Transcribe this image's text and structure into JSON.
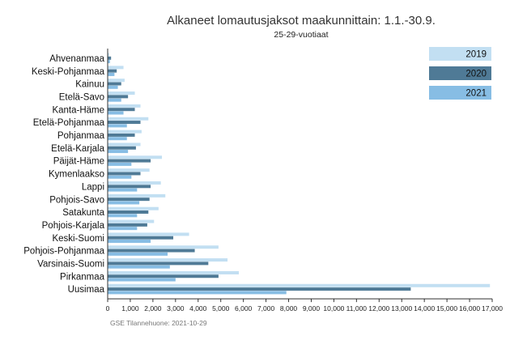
{
  "chart_data": {
    "type": "bar",
    "orientation": "horizontal",
    "title": "Alkaneet lomautusjaksot maakunnittain: 1.1.-30.9.",
    "subtitle": "25-29-vuotiaat",
    "source": "GSE Tilannehuone: 2021-10-29",
    "categories": [
      "Ahvenanmaa",
      "Keski-Pohjanmaa",
      "Kainuu",
      "Etelä-Savo",
      "Kanta-Häme",
      "Etelä-Pohjanmaa",
      "Pohjanmaa",
      "Etelä-Karjala",
      "Päijät-Häme",
      "Kymenlaakso",
      "Lappi",
      "Pohjois-Savo",
      "Satakunta",
      "Pohjois-Karjala",
      "Keski-Suomi",
      "Pohjois-Pohjanmaa",
      "Varsinais-Suomi",
      "Pirkanmaa",
      "Uusimaa"
    ],
    "series": [
      {
        "name": "2019",
        "color": "#c2dff2",
        "values": [
          60,
          700,
          750,
          1200,
          1450,
          1800,
          1500,
          1450,
          2400,
          1850,
          2350,
          2550,
          2250,
          2050,
          3600,
          4900,
          5300,
          5800,
          16900
        ]
      },
      {
        "name": "2020",
        "color": "#4f7a96",
        "values": [
          150,
          400,
          600,
          900,
          1200,
          1450,
          1200,
          1250,
          1900,
          1450,
          1900,
          1850,
          1800,
          1750,
          2900,
          3850,
          4450,
          4900,
          13400
        ]
      },
      {
        "name": "2021",
        "color": "#87bde4",
        "values": [
          100,
          300,
          450,
          600,
          700,
          850,
          850,
          900,
          1050,
          1050,
          1300,
          1400,
          1300,
          1300,
          1900,
          2650,
          2750,
          3000,
          7900
        ]
      }
    ],
    "xlim": [
      0,
      17000
    ],
    "xticks": [
      0,
      1000,
      2000,
      3000,
      4000,
      5000,
      6000,
      7000,
      8000,
      9000,
      10000,
      11000,
      12000,
      13000,
      14000,
      15000,
      16000,
      17000
    ],
    "xtick_labels": [
      "0",
      "1,000",
      "2,000",
      "3,000",
      "4,000",
      "5,000",
      "6,000",
      "7,000",
      "8,000",
      "9,000",
      "10,000",
      "11,000",
      "12,000",
      "13,000",
      "14,000",
      "15,000",
      "16,000",
      "17,000"
    ],
    "grid": false,
    "legend": "top-right"
  }
}
